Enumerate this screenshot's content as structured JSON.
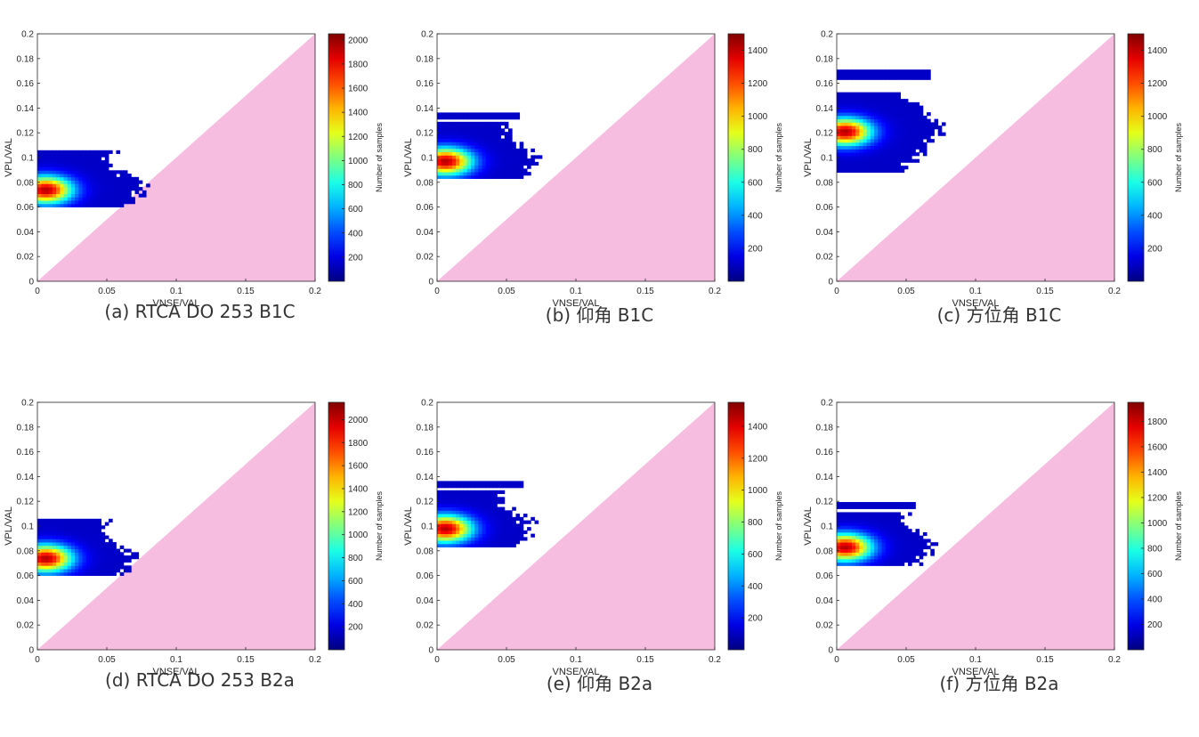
{
  "colors": {
    "triangle": "#f7bde0",
    "axis": "#262626"
  },
  "chart_data": [
    {
      "type": "heatmap",
      "caption": "(a) RTCA DO 253 B1C",
      "xlabel": "VNSE/VAL",
      "ylabel": "VPL/VAL",
      "colorbar_label": "Number of samples",
      "xlim": [
        0,
        0.2
      ],
      "ylim": [
        0,
        0.2
      ],
      "xticks": [
        "0",
        "0.05",
        "0.1",
        "0.15",
        "0.2"
      ],
      "yticks": [
        "0",
        "0.02",
        "0.04",
        "0.06",
        "0.08",
        "0.1",
        "0.12",
        "0.14",
        "0.16",
        "0.18",
        "0.2"
      ],
      "colorbar_max": 2050,
      "colorbar_ticks": [
        "200",
        "400",
        "600",
        "800",
        "1000",
        "1200",
        "1400",
        "1600",
        "1800",
        "2000"
      ],
      "cluster": {
        "x_min": 0,
        "x_max": 0.079,
        "y_min": 0.06,
        "y_max": 0.105,
        "peak_x": 0.006,
        "peak_y": 0.074,
        "extra_bands": []
      }
    },
    {
      "type": "heatmap",
      "caption": "(b) 仰角 B1C",
      "xlabel": "VNSE/VAL",
      "ylabel": "VPL/VAL",
      "colorbar_label": "Number of samples",
      "xlim": [
        0,
        0.2
      ],
      "ylim": [
        0,
        0.2
      ],
      "xticks": [
        "0",
        "0.05",
        "0.1",
        "0.15",
        "0.2"
      ],
      "yticks": [
        "0",
        "0.02",
        "0.04",
        "0.06",
        "0.08",
        "0.1",
        "0.12",
        "0.14",
        "0.16",
        "0.18",
        "0.2"
      ],
      "colorbar_max": 1500,
      "colorbar_ticks": [
        "200",
        "400",
        "600",
        "800",
        "1000",
        "1200",
        "1400"
      ],
      "cluster": {
        "x_min": 0,
        "x_max": 0.077,
        "y_min": 0.083,
        "y_max": 0.128,
        "peak_x": 0.006,
        "peak_y": 0.097,
        "extra_bands": [
          [
            0.131,
            0.134,
            0.058
          ]
        ]
      }
    },
    {
      "type": "heatmap",
      "caption": "(c) 方位角  B1C",
      "xlabel": "VNSE/VAL",
      "ylabel": "VPL/VAL",
      "colorbar_label": "Number of samples",
      "xlim": [
        0,
        0.2
      ],
      "ylim": [
        0,
        0.2
      ],
      "xticks": [
        "0",
        "0.05",
        "0.1",
        "0.15",
        "0.2"
      ],
      "yticks": [
        "0",
        "0.02",
        "0.04",
        "0.06",
        "0.08",
        "0.1",
        "0.12",
        "0.14",
        "0.16",
        "0.18",
        "0.2"
      ],
      "colorbar_max": 1500,
      "colorbar_ticks": [
        "200",
        "400",
        "600",
        "800",
        "1000",
        "1200",
        "1400"
      ],
      "cluster": {
        "x_min": 0,
        "x_max": 0.077,
        "y_min": 0.088,
        "y_max": 0.152,
        "peak_x": 0.006,
        "peak_y": 0.121,
        "extra_bands": [
          [
            0.163,
            0.17,
            0.066
          ]
        ]
      }
    },
    {
      "type": "heatmap",
      "caption": "(d) RTCA DO 253 B2a",
      "xlabel": "VNSE/VAL",
      "ylabel": "VPL/VAL",
      "colorbar_label": "Number of samples",
      "xlim": [
        0,
        0.2
      ],
      "ylim": [
        0,
        0.2
      ],
      "xticks": [
        "0",
        "0.05",
        "0.1",
        "0.15",
        "0.2"
      ],
      "yticks": [
        "0",
        "0.02",
        "0.04",
        "0.06",
        "0.08",
        "0.1",
        "0.12",
        "0.14",
        "0.16",
        "0.18",
        "0.2"
      ],
      "colorbar_max": 2150,
      "colorbar_ticks": [
        "200",
        "400",
        "600",
        "800",
        "1000",
        "1200",
        "1400",
        "1600",
        "1800",
        "2000"
      ],
      "cluster": {
        "x_min": 0,
        "x_max": 0.073,
        "y_min": 0.06,
        "y_max": 0.104,
        "peak_x": 0.006,
        "peak_y": 0.074,
        "extra_bands": []
      }
    },
    {
      "type": "heatmap",
      "caption": "(e) 仰角  B2a",
      "xlabel": "VNSE/VAL",
      "ylabel": "VPL/VAL",
      "colorbar_label": "Number of samples",
      "xlim": [
        0,
        0.2
      ],
      "ylim": [
        0,
        0.2
      ],
      "xticks": [
        "0",
        "0.05",
        "0.1",
        "0.15",
        "0.2"
      ],
      "yticks": [
        "0",
        "0.02",
        "0.04",
        "0.06",
        "0.08",
        "0.1",
        "0.12",
        "0.14",
        "0.16",
        "0.18",
        "0.2"
      ],
      "colorbar_max": 1550,
      "colorbar_ticks": [
        "200",
        "400",
        "600",
        "800",
        "1000",
        "1200",
        "1400"
      ],
      "cluster": {
        "x_min": 0,
        "x_max": 0.072,
        "y_min": 0.083,
        "y_max": 0.128,
        "peak_x": 0.006,
        "peak_y": 0.098,
        "extra_bands": [
          [
            0.131,
            0.134,
            0.062
          ]
        ]
      }
    },
    {
      "type": "heatmap",
      "caption": "(f) 方位角  B2a",
      "xlabel": "VNSE/VAL",
      "ylabel": "VPL/VAL",
      "colorbar_label": "Number of samples",
      "xlim": [
        0,
        0.2
      ],
      "ylim": [
        0,
        0.2
      ],
      "xticks": [
        "0",
        "0.05",
        "0.1",
        "0.15",
        "0.2"
      ],
      "yticks": [
        "0",
        "0.02",
        "0.04",
        "0.06",
        "0.08",
        "0.1",
        "0.12",
        "0.14",
        "0.16",
        "0.18",
        "0.2"
      ],
      "colorbar_max": 1950,
      "colorbar_ticks": [
        "200",
        "400",
        "600",
        "800",
        "1000",
        "1200",
        "1400",
        "1600",
        "1800"
      ],
      "cluster": {
        "x_min": 0,
        "x_max": 0.072,
        "y_min": 0.068,
        "y_max": 0.111,
        "peak_x": 0.006,
        "peak_y": 0.083,
        "extra_bands": [
          [
            0.114,
            0.117,
            0.056
          ]
        ]
      }
    }
  ]
}
